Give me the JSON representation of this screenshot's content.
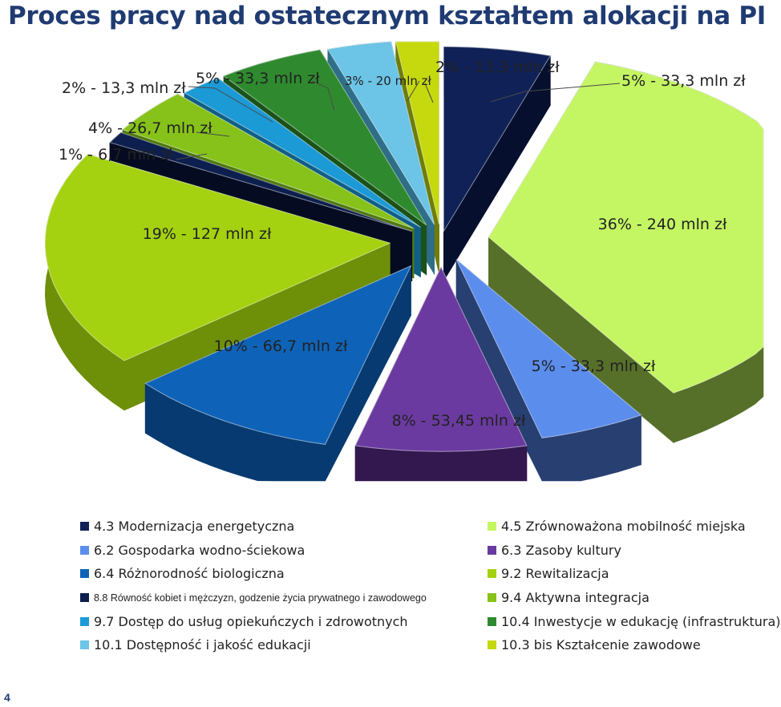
{
  "title": "Proces pracy nad ostatecznym kształtem alokacji na PI",
  "page_number": "4",
  "chart_data": {
    "type": "pie",
    "title": "Proces pracy nad ostatecznym kształtem alokacji na PI",
    "unit": "mln zł",
    "legend_position": "bottom",
    "slices": [
      {
        "category": "4.3 Modernizacja energetyczna",
        "percent": 5,
        "value": 33.3,
        "label": "5% - 33,3 mln zł",
        "color": "#0f2157",
        "side": "#06102e"
      },
      {
        "category": "4.5 Zrównoważona mobilność miejska",
        "percent": 36,
        "value": 240,
        "label": "36% - 240 mln zł",
        "color": "#c4f562",
        "side": "#56702a"
      },
      {
        "category": "6.2 Gospodarka wodno-ściekowa",
        "percent": 5,
        "value": 33.3,
        "label": "5% - 33,3 mln zł",
        "color": "#5b8ded",
        "side": "#283f72"
      },
      {
        "category": "6.3 Zasoby kultury",
        "percent": 8,
        "value": 53.45,
        "label": "8% - 53,45 mln zł",
        "color": "#6a3aa0",
        "side": "#32184f"
      },
      {
        "category": "6.4 Różnorodność biologiczna",
        "percent": 10,
        "value": 66.7,
        "label": "10% - 66,7 mln zł",
        "color": "#0e63b8",
        "side": "#073a70"
      },
      {
        "category": "9.2 Rewitalizacja",
        "percent": 19,
        "value": 127,
        "label": "19% - 127 mln zł",
        "color": "#a4d110",
        "side": "#6e8f08"
      },
      {
        "category": "8.8 Równość kobiet i mężczyzn, godzenie życia prywatnego i zawodowego",
        "percent": 1,
        "value": 6.7,
        "label": "1% - 6,7 mln zł",
        "color": "#0d1f4e",
        "side": "#050c22"
      },
      {
        "category": "9.4 Aktywna integracja",
        "percent": 4,
        "value": 26.7,
        "label": "4% - 26,7 mln zł",
        "color": "#86c219",
        "side": "#4f7a0c"
      },
      {
        "category": "9.7 Dostęp do usług opiekuńczych i zdrowotnych",
        "percent": 2,
        "value": 13.3,
        "label": "2% - 13,3 mln zł",
        "color": "#1b9ad6",
        "side": "#0f5f87"
      },
      {
        "category": "10.4 Inwestycje w edukację (infrastruktura)",
        "percent": 5,
        "value": 33.3,
        "label": "5% - 33,3 mln zł",
        "color": "#2f8a2f",
        "side": "#1a5219"
      },
      {
        "category": "10.1 Dostępność i jakość edukacji",
        "percent": 3,
        "value": 20,
        "label": "3% - 20 mln zł",
        "color": "#6cc4e6",
        "side": "#2f6e87"
      },
      {
        "category": "10.3 bis Kształcenie zawodowe",
        "percent": 2,
        "value": 13.3,
        "label": "2% - 13,3 mln zł",
        "color": "#c5d90e",
        "side": "#6f7d06"
      }
    ]
  },
  "legend": [
    {
      "label": "4.3 Modernizacja energetyczna",
      "color": "#0f2157"
    },
    {
      "label": "4.5 Zrównoważona mobilność miejska",
      "color": "#c4f562"
    },
    {
      "label": "6.2 Gospodarka wodno-ściekowa",
      "color": "#5b8ded"
    },
    {
      "label": "6.3 Zasoby kultury",
      "color": "#6a3aa0"
    },
    {
      "label": "6.4 Różnorodność biologiczna",
      "color": "#0e63b8"
    },
    {
      "label": "9.2 Rewitalizacja",
      "color": "#a4d110"
    },
    {
      "label": "8.8 Równość kobiet i mężczyzn, godzenie życia prywatnego i zawodowego",
      "color": "#0d1f4e"
    },
    {
      "label": "9.4 Aktywna integracja",
      "color": "#86c219"
    },
    {
      "label": "9.7 Dostęp do usług opiekuńczych i zdrowotnych",
      "color": "#1b9ad6"
    },
    {
      "label": "10.4 Inwestycje w edukację (infrastruktura)",
      "color": "#2f8a2f"
    },
    {
      "label": "10.1 Dostępność i jakość edukacji",
      "color": "#6cc4e6"
    },
    {
      "label": "10.3 bis Kształcenie zawodowe",
      "color": "#c5d90e"
    }
  ]
}
